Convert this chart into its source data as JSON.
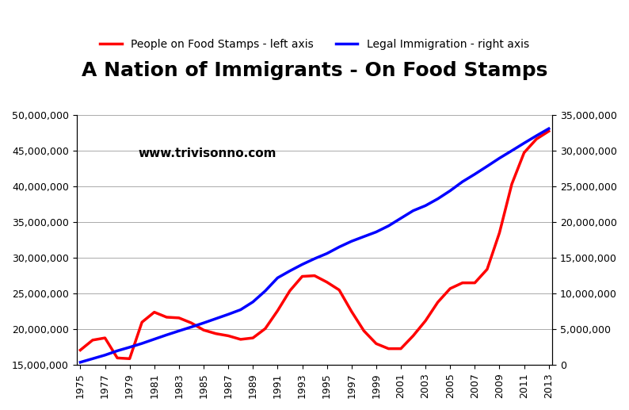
{
  "title": "A Nation of Immigrants - On Food Stamps",
  "watermark": "www.trivisonno.com",
  "legend_label_left": "People on Food Stamps - left axis",
  "legend_label_right": "Legal Immigration - right axis",
  "food_stamps_color": "#FF0000",
  "immigration_color": "#0000FF",
  "line_width": 2.5,
  "years": [
    1975,
    1976,
    1977,
    1978,
    1979,
    1980,
    1981,
    1982,
    1983,
    1984,
    1985,
    1986,
    1987,
    1988,
    1989,
    1990,
    1991,
    1992,
    1993,
    1994,
    1995,
    1996,
    1997,
    1998,
    1999,
    2000,
    2001,
    2002,
    2003,
    2004,
    2005,
    2006,
    2007,
    2008,
    2009,
    2010,
    2011,
    2012,
    2013
  ],
  "food_stamps": [
    17100000,
    18500000,
    18800000,
    16000000,
    15900000,
    21000000,
    22400000,
    21700000,
    21600000,
    20900000,
    19900000,
    19400000,
    19100000,
    18600000,
    18800000,
    20100000,
    22600000,
    25400000,
    27400000,
    27500000,
    26600000,
    25500000,
    22500000,
    19800000,
    18000000,
    17300000,
    17300000,
    19100000,
    21200000,
    23800000,
    25700000,
    26500000,
    26500000,
    28400000,
    33500000,
    40300000,
    44700000,
    46600000,
    47700000
  ],
  "immigration": [
    400000,
    900000,
    1400000,
    2000000,
    2500000,
    3030000,
    3627000,
    4221000,
    4781000,
    5325000,
    5895000,
    6497000,
    7099000,
    7742000,
    8833000,
    10369000,
    12196000,
    13170000,
    14074000,
    14878000,
    15598000,
    16514000,
    17312000,
    17966000,
    18613000,
    19463000,
    20527000,
    21586000,
    22292000,
    23250000,
    24372000,
    25638000,
    26690000,
    27797000,
    28927000,
    29970000,
    31032000,
    32063000,
    33053000
  ],
  "left_ylim": [
    15000000,
    50000000
  ],
  "left_yticks": [
    15000000,
    20000000,
    25000000,
    30000000,
    35000000,
    40000000,
    45000000,
    50000000
  ],
  "right_ylim": [
    0,
    35000000
  ],
  "right_yticks": [
    0,
    5000000,
    10000000,
    15000000,
    20000000,
    25000000,
    30000000,
    35000000
  ],
  "background_color": "#FFFFFF",
  "grid_color": "#AAAAAA",
  "title_fontsize": 18,
  "legend_fontsize": 10,
  "tick_fontsize": 9,
  "watermark_fontsize": 11
}
